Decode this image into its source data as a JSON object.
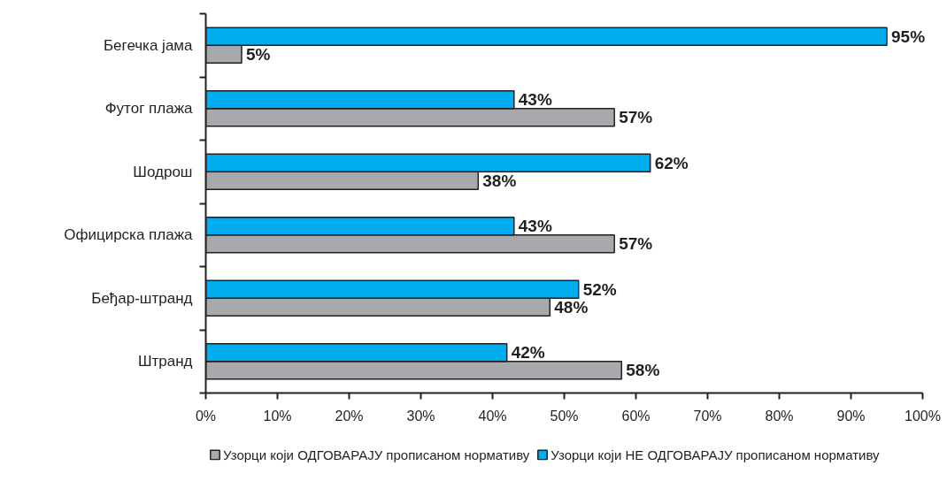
{
  "chart_data": {
    "type": "bar",
    "orientation": "horizontal",
    "categories": [
      "Бегечка јама",
      "Футог плажа",
      "Шодрош",
      "Официрска плажа",
      "Беђар-штранд",
      "Штранд"
    ],
    "series": [
      {
        "name": "Узорци који ОДГОВАРАЈУ прописаном нормативу",
        "color": "#a7a9ac",
        "values": [
          5,
          57,
          38,
          57,
          48,
          58
        ],
        "value_labels": [
          "5%",
          "57%",
          "38%",
          "57%",
          "48%",
          "58%"
        ]
      },
      {
        "name": "Узорци који НЕ ОДГОВАРАЈУ прописаном нормативу",
        "color": "#00aeef",
        "values": [
          95,
          43,
          62,
          43,
          52,
          42
        ],
        "value_labels": [
          "95%",
          "43%",
          "62%",
          "43%",
          "52%",
          "42%"
        ]
      }
    ],
    "xlim": [
      0,
      100
    ],
    "xticks": [
      {
        "value": 0,
        "label": "0%"
      },
      {
        "value": 10,
        "label": "10%"
      },
      {
        "value": 20,
        "label": "20%"
      },
      {
        "value": 30,
        "label": "30%"
      },
      {
        "value": 40,
        "label": "40%"
      },
      {
        "value": 50,
        "label": "50%"
      },
      {
        "value": 60,
        "label": "60%"
      },
      {
        "value": 70,
        "label": "70%"
      },
      {
        "value": 80,
        "label": "80%"
      },
      {
        "value": 90,
        "label": "90%"
      },
      {
        "value": 100,
        "label": "100%"
      }
    ],
    "grid": false,
    "legend": "bottom"
  }
}
